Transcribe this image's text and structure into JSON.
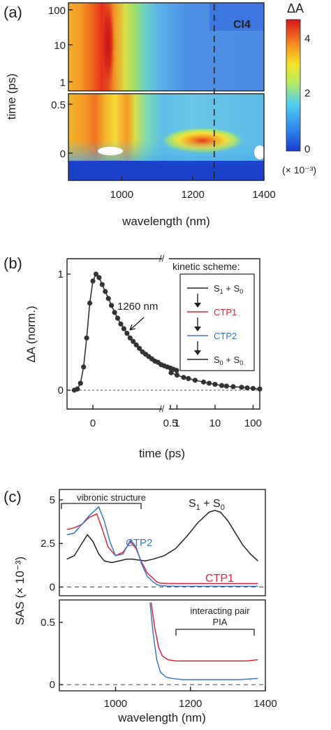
{
  "figure": {
    "panel_a": "(a)",
    "panel_b": "(b)",
    "panel_c": "(c)"
  },
  "chart_data": [
    {
      "type": "heatmap",
      "panel": "(a)",
      "sample_label": "CI4",
      "xlabel": "wavelength (nm)",
      "ylabel": "time (ps)",
      "xlim": [
        850,
        1400
      ],
      "x_ticks": [
        "1000",
        "1200",
        "1400"
      ],
      "y_ticks_log": [
        "1",
        "10",
        "100"
      ],
      "y_ticks_lin": [
        "0",
        "0.5"
      ],
      "colorbar": {
        "label": "ΔA",
        "ticks": [
          "0",
          "2",
          "4"
        ],
        "unit": "(× 10⁻³)",
        "range": [
          0,
          4.6
        ]
      },
      "marker_wavelength": 1260,
      "features": [
        {
          "wavelength": 950,
          "time_range": "0.1–100 ps",
          "level": 4.5
        },
        {
          "wavelength": 1045,
          "time_range": "0.1–0.5 ps",
          "level": 3.0
        },
        {
          "wavelength": 1260,
          "time": 0.12,
          "level": 3.6
        }
      ]
    },
    {
      "type": "scatter",
      "panel": "(b)",
      "xlabel": "time (ps)",
      "ylabel": "ΔA (norm.)",
      "x_ticks": [
        "0",
        "0.5",
        "1",
        "10",
        "100"
      ],
      "y_ticks": [
        "0",
        "1"
      ],
      "annotation": "1260 nm",
      "legend_title": "kinetic scheme:",
      "scheme": [
        {
          "name": "S1 + S0",
          "base": "S",
          "sub1": "1",
          "mid": " + S",
          "sub2": "0",
          "color": "#222222"
        },
        {
          "name": "CTP1",
          "base": "CTP1",
          "sub1": "",
          "mid": "",
          "sub2": "",
          "color": "#e0233c"
        },
        {
          "name": "CTP2",
          "base": "CTP2",
          "sub1": "",
          "mid": "",
          "sub2": "",
          "color": "#3a78c8"
        },
        {
          "name": "S0 + S0",
          "base": "S",
          "sub1": "0",
          "mid": " + S",
          "sub2": "0",
          "color": "#222222"
        }
      ],
      "series": [
        {
          "linear_x": [
            -0.12,
            -0.1,
            -0.08,
            -0.06,
            -0.04,
            -0.02,
            0,
            0.02,
            0.04,
            0.06,
            0.08,
            0.1,
            0.12,
            0.14,
            0.16,
            0.18,
            0.2,
            0.22,
            0.24,
            0.26,
            0.28,
            0.3,
            0.32,
            0.34,
            0.36,
            0.38,
            0.4,
            0.42,
            0.44,
            0.46,
            0.48,
            0.5,
            0.52,
            0.54
          ],
          "linear_y": [
            0,
            0.01,
            0.06,
            0.2,
            0.45,
            0.75,
            0.94,
            1.0,
            0.97,
            0.91,
            0.85,
            0.79,
            0.73,
            0.67,
            0.62,
            0.57,
            0.53,
            0.49,
            0.45,
            0.42,
            0.39,
            0.36,
            0.33,
            0.31,
            0.29,
            0.27,
            0.25,
            0.24,
            0.22,
            0.21,
            0.2,
            0.19,
            0.18,
            0.17
          ],
          "log_x": [
            0.7,
            1,
            1.5,
            2,
            3,
            5,
            7,
            10,
            15,
            20,
            30,
            50,
            70,
            100,
            150
          ],
          "log_y": [
            0.15,
            0.13,
            0.11,
            0.1,
            0.085,
            0.07,
            0.06,
            0.05,
            0.04,
            0.035,
            0.03,
            0.025,
            0.02,
            0.015,
            0.01
          ]
        }
      ]
    },
    {
      "type": "line",
      "panel": "(c)",
      "xlabel": "wavelength (nm)",
      "ylabel": "SAS (× 10⁻³)",
      "xlim": [
        850,
        1400
      ],
      "x_ticks": [
        "1000",
        "1200",
        "1400"
      ],
      "top_y_ticks": [
        "0",
        "2.5",
        "5"
      ],
      "top_ylim": [
        -0.5,
        5.6
      ],
      "bottom_y_ticks": [
        "0",
        "0.5"
      ],
      "bottom_ylim": [
        -0.05,
        0.68
      ],
      "annotations": {
        "vibronic": "vibronic structure",
        "ctp2": "CTP2",
        "ctp1": "CTP1",
        "s1s0_base": "S",
        "s1s0_sub1": "1",
        "s1s0_mid": " + S",
        "s1s0_sub2": "0",
        "pair_line1": "interacting pair",
        "pair_line2": "PIA"
      },
      "series": [
        {
          "name": "S1 + S0",
          "color": "#222222",
          "x": [
            870,
            890,
            910,
            925,
            940,
            955,
            970,
            990,
            1010,
            1030,
            1045,
            1060,
            1080,
            1100,
            1130,
            1160,
            1190,
            1220,
            1250,
            1265,
            1280,
            1300,
            1320,
            1340,
            1360,
            1380
          ],
          "y": [
            1.6,
            1.8,
            2.5,
            3.0,
            2.6,
            1.9,
            1.5,
            1.4,
            1.5,
            1.6,
            1.6,
            1.55,
            1.5,
            1.6,
            1.8,
            2.2,
            2.9,
            3.7,
            4.3,
            4.4,
            4.3,
            3.8,
            3.1,
            2.4,
            1.9,
            1.5
          ]
        },
        {
          "name": "CTP1",
          "color": "#e0233c",
          "x": [
            870,
            890,
            910,
            930,
            950,
            965,
            980,
            1000,
            1020,
            1040,
            1055,
            1070,
            1085,
            1100,
            1110,
            1120,
            1140,
            1170,
            1200,
            1250,
            1300,
            1350,
            1380
          ],
          "y": [
            3.3,
            3.4,
            3.6,
            4.0,
            4.2,
            3.3,
            2.3,
            1.8,
            2.0,
            2.6,
            2.2,
            1.4,
            0.8,
            0.5,
            0.3,
            0.22,
            0.2,
            0.2,
            0.2,
            0.2,
            0.2,
            0.2,
            0.2
          ],
          "bottom_x": [
            1095,
            1105,
            1115,
            1125,
            1140,
            1160,
            1200,
            1250,
            1300,
            1350,
            1380
          ],
          "bottom_y": [
            0.66,
            0.45,
            0.3,
            0.23,
            0.2,
            0.19,
            0.19,
            0.19,
            0.19,
            0.19,
            0.2
          ]
        },
        {
          "name": "CTP2",
          "color": "#3a78c8",
          "x": [
            870,
            890,
            910,
            930,
            955,
            970,
            985,
            1000,
            1020,
            1040,
            1055,
            1070,
            1085,
            1100,
            1110,
            1120,
            1140,
            1170,
            1200,
            1250,
            1300,
            1350,
            1380
          ],
          "y": [
            3.0,
            3.1,
            3.6,
            4.1,
            4.6,
            3.8,
            2.6,
            1.8,
            1.9,
            2.7,
            2.3,
            1.3,
            0.6,
            0.3,
            0.15,
            0.08,
            0.05,
            0.04,
            0.04,
            0.04,
            0.04,
            0.04,
            0.04
          ],
          "bottom_x": [
            1092,
            1100,
            1110,
            1120,
            1135,
            1150,
            1180,
            1220,
            1280,
            1330,
            1380
          ],
          "bottom_y": [
            0.66,
            0.42,
            0.2,
            0.1,
            0.06,
            0.05,
            0.04,
            0.04,
            0.04,
            0.04,
            0.05
          ]
        }
      ]
    }
  ]
}
